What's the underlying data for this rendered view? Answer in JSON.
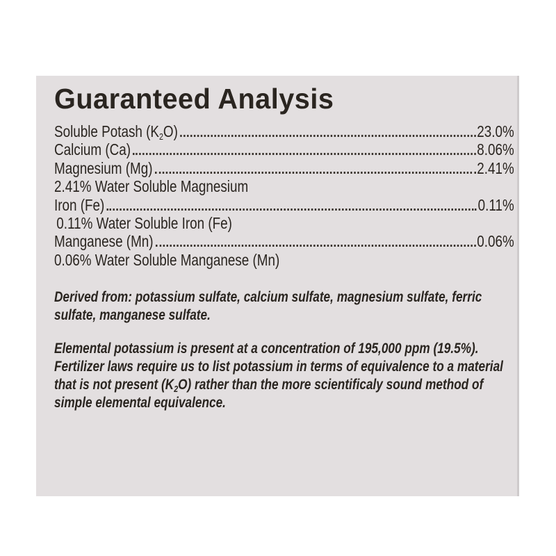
{
  "title": "Guaranteed Analysis",
  "rows": [
    {
      "label_pre": "Soluble Potash (K",
      "label_sub": "2",
      "label_post": "O)",
      "value": "23.0%"
    },
    {
      "label": "Calcium (Ca)",
      "value": "8.06%"
    },
    {
      "label": "Magnesium (Mg)",
      "value": "2.41%"
    },
    {
      "note": "2.41% Water Soluble Magnesium"
    },
    {
      "label": "Iron (Fe)",
      "value": "0.11%"
    },
    {
      "note": "0.11% Water Soluble Iron (Fe)"
    },
    {
      "label": "Manganese (Mn)",
      "value": "0.06%"
    },
    {
      "note": "0.06% Water Soluble Manganese (Mn)"
    }
  ],
  "derived_from": "Derived from: potassium sulfate, calcium sulfate, magnesium sulfate, ferric sulfate, manganese sulfate.",
  "elemental_note": {
    "pre": "Elemental potassium is present at a concentration of 195,000 ppm (19.5%). Fertilizer laws require us to list potassium in terms of equivalence to a material that is not present (K",
    "sub": "2",
    "post": "O) rather than the more scientificaly sound method of simple elemental equivalence."
  },
  "colors": {
    "panel": "#e3dfe0",
    "text": "#2a2520",
    "background": "#ffffff"
  }
}
